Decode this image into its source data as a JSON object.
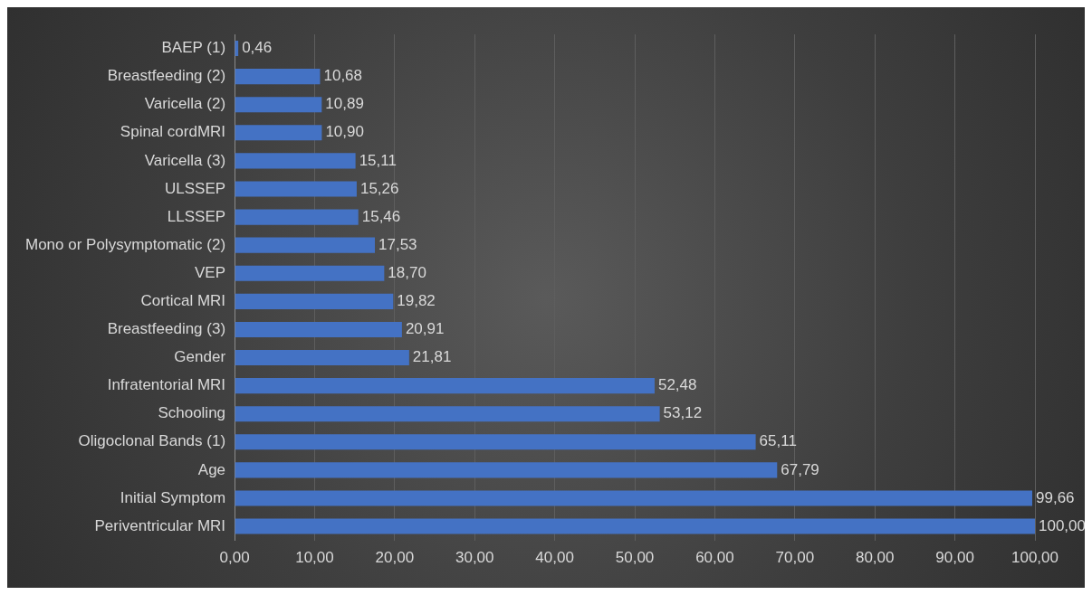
{
  "chart_data": {
    "type": "bar",
    "orientation": "horizontal",
    "categories": [
      "BAEP (1)",
      "Breastfeeding (2)",
      "Varicella (2)",
      "Spinal cordMRI",
      "Varicella (3)",
      "ULSSEP",
      "LLSSEP",
      "Mono or Polysymptomatic (2)",
      "VEP",
      "Cortical MRI",
      "Breastfeeding (3)",
      "Gender",
      "Infratentorial MRI",
      "Schooling",
      "Oligoclonal Bands (1)",
      "Age",
      "Initial Symptom",
      "Periventricular MRI"
    ],
    "values": [
      0.46,
      10.68,
      10.89,
      10.9,
      15.11,
      15.26,
      15.46,
      17.53,
      18.7,
      19.82,
      20.91,
      21.81,
      52.48,
      53.12,
      65.11,
      67.79,
      99.66,
      100.0
    ],
    "value_labels": [
      "0,46",
      "10,68",
      "10,89",
      "10,90",
      "15,11",
      "15,26",
      "15,46",
      "17,53",
      "18,70",
      "19,82",
      "20,91",
      "21,81",
      "52,48",
      "53,12",
      "65,11",
      "67,79",
      "99,66",
      "100,00"
    ],
    "color": "#4472c4",
    "xlim": [
      0,
      100
    ],
    "xticks": [
      {
        "value": 0,
        "label": "0,00"
      },
      {
        "value": 10,
        "label": "10,00"
      },
      {
        "value": 20,
        "label": "20,00"
      },
      {
        "value": 30,
        "label": "30,00"
      },
      {
        "value": 40,
        "label": "40,00"
      },
      {
        "value": 50,
        "label": "50,00"
      },
      {
        "value": 60,
        "label": "60,00"
      },
      {
        "value": 70,
        "label": "70,00"
      },
      {
        "value": 80,
        "label": "80,00"
      },
      {
        "value": 90,
        "label": "90,00"
      },
      {
        "value": 100,
        "label": "100,00"
      }
    ],
    "grid": "x",
    "legend": false
  }
}
